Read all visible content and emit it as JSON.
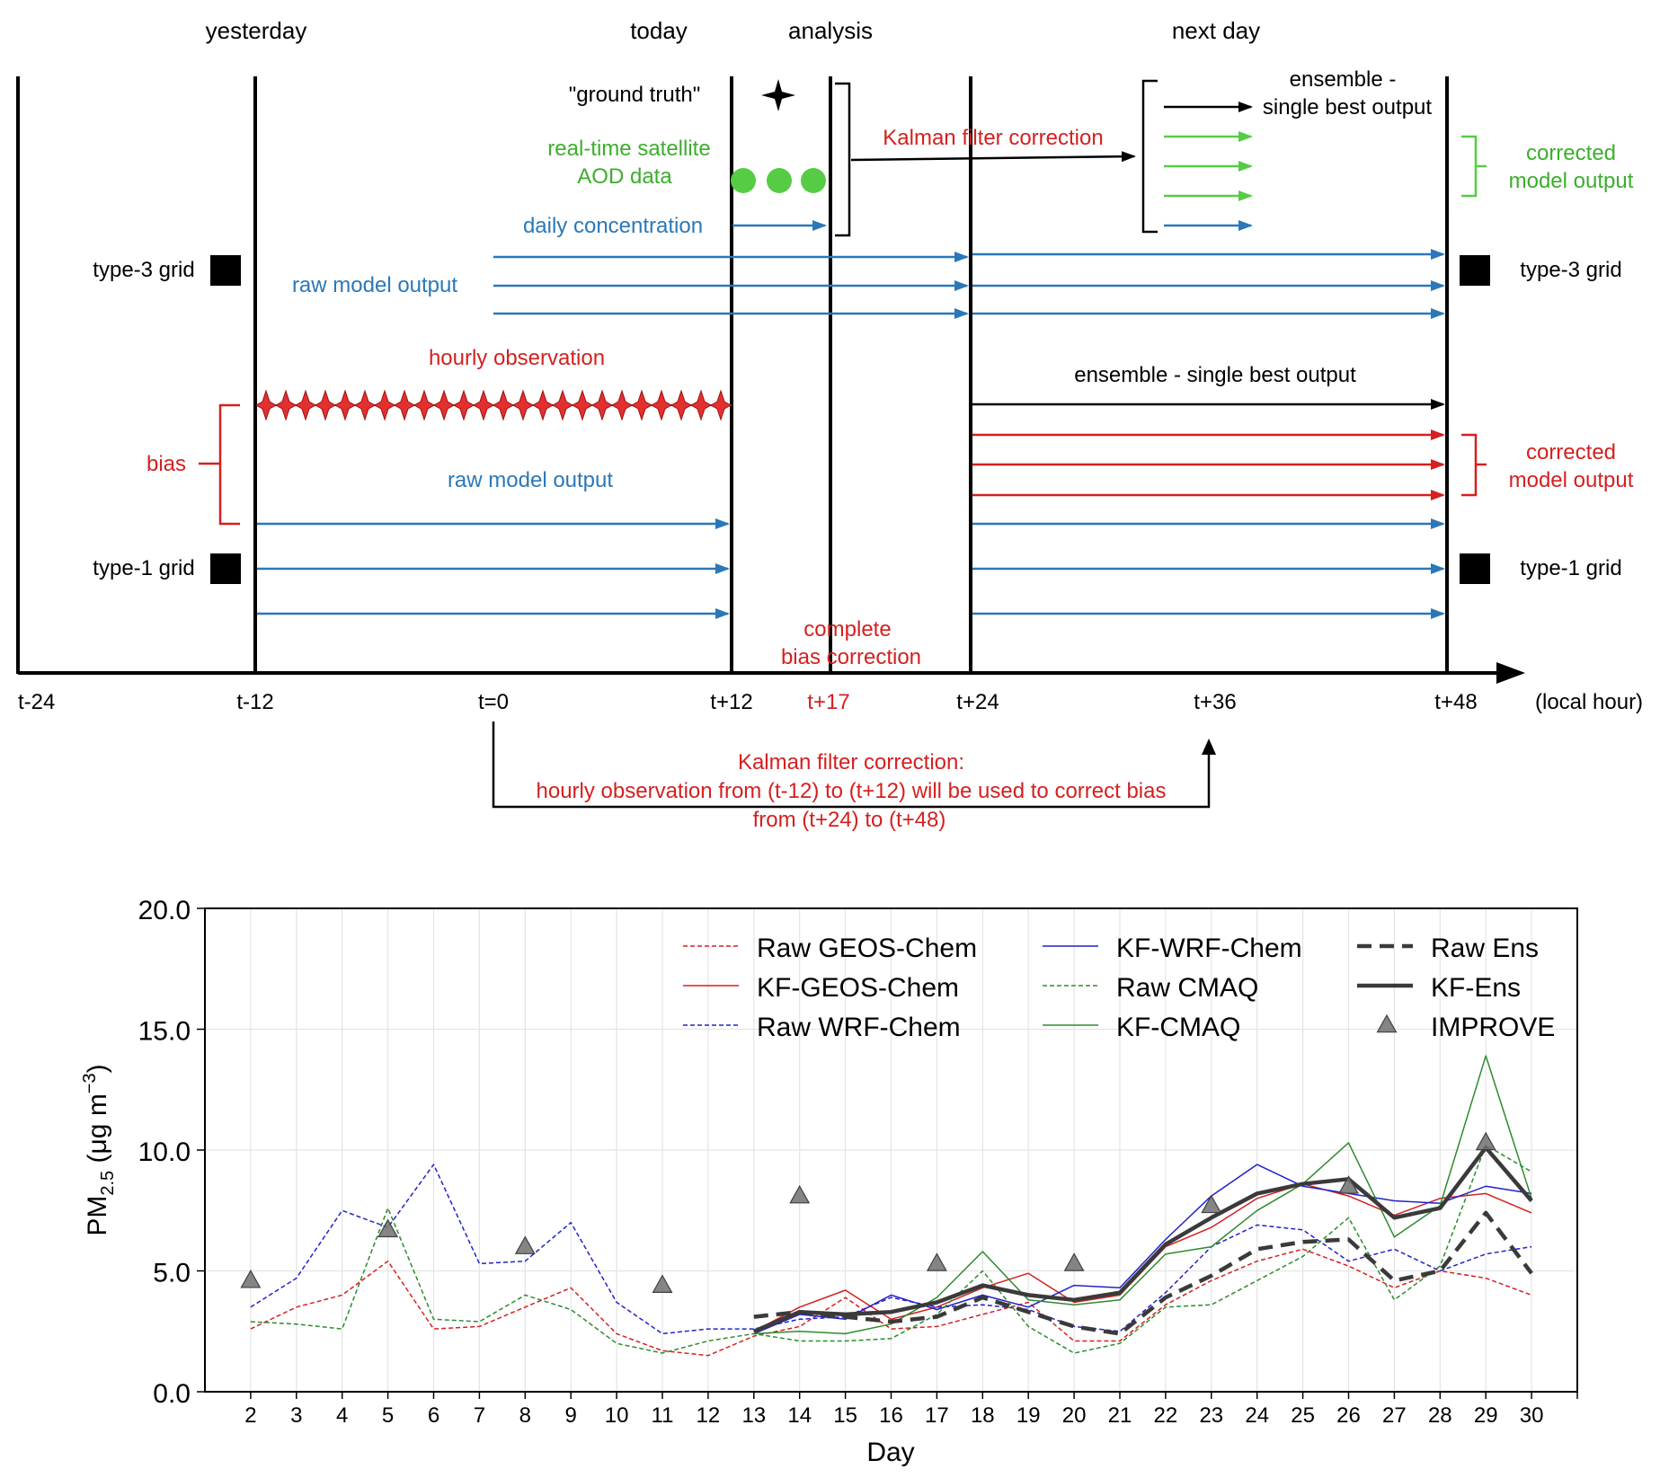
{
  "colors": {
    "blue": "#2a78b8",
    "red": "#d42020",
    "green": "#3cae2c",
    "bright_green": "#55cc44",
    "black": "#000000"
  },
  "timeline": {
    "periods": [
      "yesterday",
      "today",
      "analysis",
      "next day"
    ],
    "ticks": [
      "t-24",
      "t-12",
      "t=0",
      "t+12",
      "t+17",
      "t+24",
      "t+36",
      "t+48",
      "(local hour)"
    ],
    "ground_truth": "\"ground truth\"",
    "satellite_line1": "real-time satellite",
    "satellite_line2": "AOD data",
    "daily_concentration": "daily concentration",
    "kalman_top": "Kalman filter correction",
    "ensemble_top_line1": "ensemble -",
    "ensemble_top_line2": "single best output",
    "corrected_line1": "corrected",
    "corrected_line2": "model output",
    "type3_grid": "type-3 grid",
    "type1_grid": "type-1 grid",
    "raw_model_output": "raw model output",
    "hourly_observation": "hourly observation",
    "bias": "bias",
    "ensemble_mid": "ensemble - single best output",
    "complete_line1": "complete",
    "complete_line2": "bias correction",
    "kalman_bottom_line1": "Kalman filter correction:",
    "kalman_bottom_line2": "hourly observation from (t-12) to (t+12) will be used to correct bias",
    "kalman_bottom_line3": "from (t+24) to (t+48)"
  },
  "chart_data": {
    "type": "line",
    "xlabel": "Day",
    "ylabel": "PM2.5 (μg m−3)",
    "ylabel_main": "PM",
    "ylabel_sub": "2.5",
    "ylabel_rest": " (μg m",
    "ylabel_sup": "−3",
    "ylabel_close": ")",
    "ylim": [
      0,
      20
    ],
    "xlim": [
      1,
      31
    ],
    "yticks": [
      "0.0",
      "5.0",
      "10.0",
      "15.0",
      "20.0"
    ],
    "xticks": [
      "2",
      "3",
      "4",
      "5",
      "6",
      "7",
      "8",
      "9",
      "10",
      "11",
      "12",
      "13",
      "14",
      "15",
      "16",
      "17",
      "18",
      "19",
      "20",
      "21",
      "22",
      "23",
      "24",
      "25",
      "26",
      "27",
      "28",
      "29",
      "30"
    ],
    "grid": true,
    "legend_position": "top-right",
    "series": [
      {
        "name": "Raw GEOS-Chem",
        "color": "#d42020",
        "style": "dashed",
        "width": 1.5,
        "x": [
          2,
          3,
          4,
          5,
          6,
          7,
          8,
          9,
          10,
          11,
          12,
          13,
          14,
          15,
          16,
          17,
          18,
          19,
          20,
          21,
          22,
          23,
          24,
          25,
          26,
          27,
          28,
          29,
          30
        ],
        "y": [
          2.6,
          3.5,
          4.0,
          5.4,
          2.6,
          2.7,
          3.5,
          4.3,
          2.4,
          1.7,
          1.5,
          2.3,
          2.7,
          3.9,
          2.6,
          2.7,
          3.2,
          3.7,
          2.1,
          2.1,
          3.6,
          4.6,
          5.4,
          5.9,
          5.2,
          4.3,
          5.0,
          4.7,
          4.0
        ]
      },
      {
        "name": "KF-GEOS-Chem",
        "color": "#d42020",
        "style": "solid",
        "width": 1.5,
        "x": [
          13,
          14,
          15,
          16,
          17,
          18,
          19,
          20,
          21,
          22,
          23,
          24,
          25,
          26,
          27,
          28,
          29,
          30
        ],
        "y": [
          2.5,
          3.5,
          4.2,
          3.0,
          3.5,
          4.3,
          4.9,
          3.7,
          4.0,
          6.0,
          6.8,
          8.0,
          8.6,
          8.1,
          7.3,
          8.0,
          8.2,
          7.4
        ]
      },
      {
        "name": "Raw WRF-Chem",
        "color": "#2222cc",
        "style": "dashed",
        "width": 1.5,
        "x": [
          2,
          3,
          4,
          5,
          6,
          7,
          8,
          9,
          10,
          11,
          12,
          13,
          14,
          15,
          16,
          17,
          18,
          19,
          20,
          21,
          22,
          23,
          24,
          25,
          26,
          27,
          28,
          29,
          30
        ],
        "y": [
          3.5,
          4.7,
          7.5,
          6.8,
          9.4,
          5.3,
          5.4,
          7.0,
          3.7,
          2.4,
          2.6,
          2.6,
          3.0,
          3.1,
          3.9,
          3.5,
          3.6,
          3.4,
          2.7,
          2.5,
          4.1,
          6.0,
          6.9,
          6.7,
          5.4,
          5.9,
          5.0,
          5.7,
          6.0
        ]
      },
      {
        "name": "KF-WRF-Chem",
        "color": "#2222cc",
        "style": "solid",
        "width": 1.5,
        "x": [
          13,
          14,
          15,
          16,
          17,
          18,
          19,
          20,
          21,
          22,
          23,
          24,
          25,
          26,
          27,
          28,
          29,
          30
        ],
        "y": [
          2.4,
          3.2,
          3.0,
          4.0,
          3.4,
          4.0,
          3.5,
          4.4,
          4.3,
          6.3,
          8.1,
          9.4,
          8.5,
          8.2,
          7.9,
          7.8,
          8.5,
          8.2
        ]
      },
      {
        "name": "Raw CMAQ",
        "color": "#2e8b2e",
        "style": "dashed",
        "width": 1.5,
        "x": [
          2,
          3,
          4,
          5,
          6,
          7,
          8,
          9,
          10,
          11,
          12,
          13,
          14,
          15,
          16,
          17,
          18,
          19,
          20,
          21,
          22,
          23,
          24,
          25,
          26,
          27,
          28,
          29,
          30
        ],
        "y": [
          2.9,
          2.8,
          2.6,
          7.6,
          3.0,
          2.9,
          4.0,
          3.4,
          2.0,
          1.6,
          2.1,
          2.4,
          2.1,
          2.1,
          2.2,
          3.2,
          5.0,
          2.7,
          1.6,
          2.0,
          3.5,
          3.6,
          4.6,
          5.6,
          7.2,
          3.8,
          5.2,
          10.2,
          9.1
        ]
      },
      {
        "name": "KF-CMAQ",
        "color": "#2e8b2e",
        "style": "solid",
        "width": 1.5,
        "x": [
          13,
          14,
          15,
          16,
          17,
          18,
          19,
          20,
          21,
          22,
          23,
          24,
          25,
          26,
          27,
          28,
          29,
          30
        ],
        "y": [
          2.4,
          2.5,
          2.4,
          2.8,
          3.9,
          5.8,
          3.8,
          3.6,
          3.8,
          5.7,
          6.0,
          7.5,
          8.6,
          10.3,
          6.4,
          7.7,
          13.9,
          8.0
        ]
      },
      {
        "name": "Raw Ens",
        "color": "#3a3a3a",
        "style": "dashed",
        "width": 4.5,
        "x": [
          13,
          14,
          15,
          16,
          17,
          18,
          19,
          20,
          21,
          22,
          23,
          24,
          25,
          26,
          27,
          28,
          29,
          30
        ],
        "y": [
          3.1,
          3.3,
          3.1,
          2.9,
          3.1,
          3.9,
          3.3,
          2.7,
          2.4,
          3.9,
          4.8,
          5.9,
          6.2,
          6.3,
          4.6,
          5.0,
          7.4,
          4.9
        ]
      },
      {
        "name": "KF-Ens",
        "color": "#3a3a3a",
        "style": "solid",
        "width": 4.5,
        "x": [
          13,
          14,
          15,
          16,
          17,
          18,
          19,
          20,
          21,
          22,
          23,
          24,
          25,
          26,
          27,
          28,
          29,
          30
        ],
        "y": [
          2.5,
          3.3,
          3.2,
          3.3,
          3.7,
          4.4,
          4.0,
          3.8,
          4.1,
          6.1,
          7.2,
          8.2,
          8.6,
          8.8,
          7.2,
          7.6,
          10.1,
          7.9
        ]
      },
      {
        "name": "IMPROVE",
        "color": "#707070",
        "style": "marker",
        "x": [
          2,
          5,
          8,
          11,
          14,
          17,
          20,
          23,
          26,
          29
        ],
        "y": [
          4.6,
          6.7,
          6.0,
          4.4,
          8.1,
          5.3,
          5.3,
          7.7,
          8.5,
          10.3
        ]
      }
    ]
  }
}
